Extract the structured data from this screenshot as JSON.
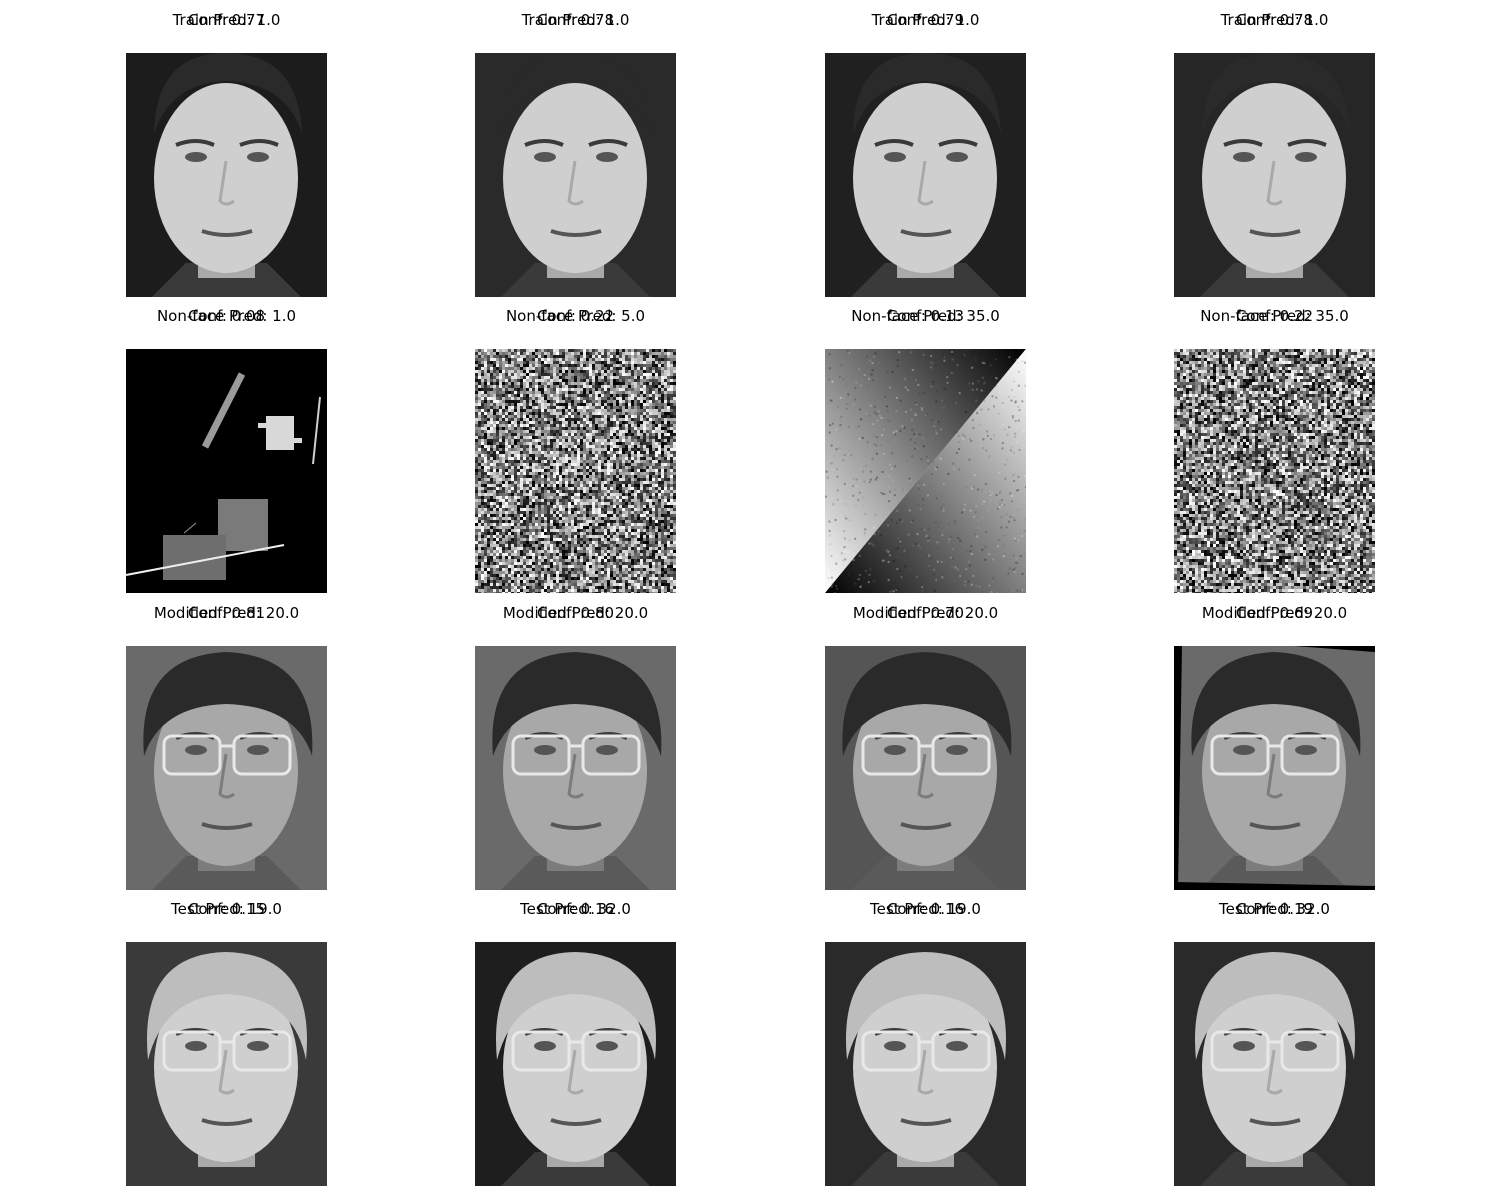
{
  "panels": [
    {
      "caption": "Train Pred: 1.0",
      "conf": "Conf: 0.77",
      "kind": "face",
      "tone": "light",
      "glasses": false,
      "hair": "short-dark",
      "bg": "#1c1c1c"
    },
    {
      "caption": "Train Pred: 1.0",
      "conf": "Conf: 0.78",
      "kind": "face",
      "tone": "light",
      "glasses": false,
      "hair": "short-dark",
      "bg": "#2a2a2a"
    },
    {
      "caption": "Train Pred: 1.0",
      "conf": "Conf: 0.79",
      "kind": "face",
      "tone": "light",
      "glasses": false,
      "hair": "short-dark",
      "bg": "#202020"
    },
    {
      "caption": "Train Pred: 1.0",
      "conf": "Conf: 0.78",
      "kind": "face",
      "tone": "light",
      "glasses": false,
      "hair": "short-dark",
      "bg": "#262626"
    },
    {
      "caption": "Non-face Pred: 1.0",
      "conf": "Conf: 0.08",
      "kind": "shapes"
    },
    {
      "caption": "Non-face Pred: 5.0",
      "conf": "Conf: 0.22",
      "kind": "noise"
    },
    {
      "caption": "Non-face Pred: 35.0",
      "conf": "Conf: 0.13",
      "kind": "gradient"
    },
    {
      "caption": "Non-face Pred: 35.0",
      "conf": "Conf: 0.22",
      "kind": "noise"
    },
    {
      "caption": "Modified Pred: 20.0",
      "conf": "Conf: 0.81",
      "kind": "face",
      "tone": "mid",
      "glasses": true,
      "hair": "full-dark",
      "bg": "#6a6a6a"
    },
    {
      "caption": "Modified Pred: 20.0",
      "conf": "Conf: 0.80",
      "kind": "face",
      "tone": "mid",
      "glasses": true,
      "hair": "full-dark",
      "bg": "#6a6a6a"
    },
    {
      "caption": "Modified Pred: 20.0",
      "conf": "Conf: 0.70",
      "kind": "face",
      "tone": "mid",
      "glasses": true,
      "hair": "full-dark",
      "bg": "#555555"
    },
    {
      "caption": "Modified Pred: 20.0",
      "conf": "Conf: 0.69",
      "kind": "face",
      "tone": "mid",
      "glasses": true,
      "hair": "full-dark",
      "bg": "#6a6a6a",
      "rotated": true
    },
    {
      "caption": "Test Pred: 19.0",
      "conf": "Conf: 0.15",
      "kind": "face",
      "tone": "light",
      "glasses": true,
      "hair": "light",
      "bg": "#3a3a3a"
    },
    {
      "caption": "Test Pred: 32.0",
      "conf": "Conf: 0.16",
      "kind": "face",
      "tone": "light",
      "glasses": true,
      "hair": "light",
      "bg": "#1e1e1e"
    },
    {
      "caption": "Test Pred: 19.0",
      "conf": "Conf: 0.16",
      "kind": "face",
      "tone": "light",
      "glasses": true,
      "hair": "light",
      "bg": "#2a2a2a"
    },
    {
      "caption": "Test Pred: 32.0",
      "conf": "Conf: 0.19",
      "kind": "face",
      "tone": "light",
      "glasses": true,
      "hair": "light",
      "bg": "#2a2a2a"
    }
  ]
}
